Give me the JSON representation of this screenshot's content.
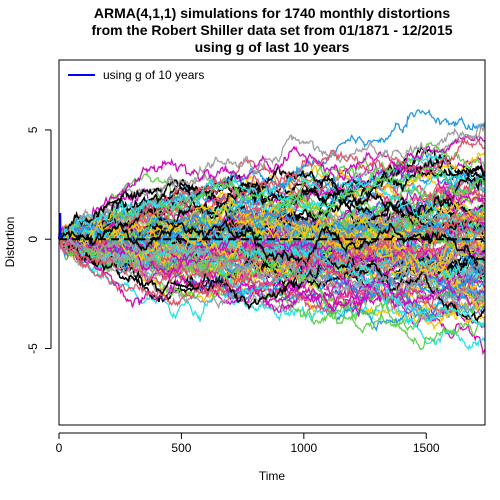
{
  "chart_data": {
    "type": "line",
    "title": [
      "ARMA(4,1,1) simulations for 1740 monthly distortions",
      "from the Robert Shiller data set from 01/1871 - 12/2015",
      "using g of last 10 years"
    ],
    "xlabel": "Time",
    "ylabel": "Distortion",
    "xlim": [
      0,
      1740
    ],
    "ylim": [
      -8.5,
      8.2
    ],
    "x_ticks": [
      0,
      500,
      1000,
      1500
    ],
    "y_ticks": [
      -5,
      0,
      5
    ],
    "grid": false,
    "legend": {
      "position": "top-left",
      "entries": [
        {
          "label": "using g of 10 years",
          "color": "#0000ff"
        }
      ]
    },
    "reference_line": {
      "y": 0,
      "style": "dashed",
      "color": "#000000"
    },
    "n_steps": 1740,
    "n_simulations_drawn": 130,
    "blue_series": {
      "name": "using g of 10 years",
      "x": [
        0,
        3,
        5,
        6,
        8
      ],
      "y": [
        0,
        0.5,
        1.2,
        0.3,
        0.1
      ],
      "color": "#0000ff"
    },
    "palette": [
      "#000000",
      "#df536b",
      "#61d04f",
      "#2297e6",
      "#28e2e5",
      "#cd0bbc",
      "#f5c710",
      "#9e9e9e"
    ]
  }
}
